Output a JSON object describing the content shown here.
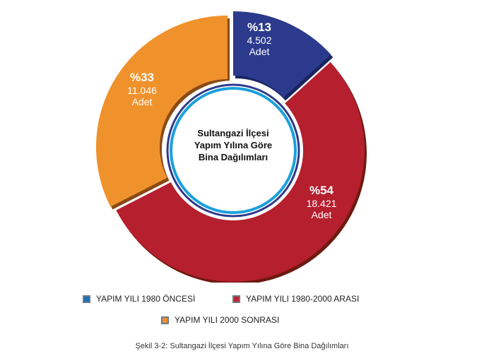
{
  "chart_data": {
    "type": "pie",
    "title": "Sultangazi İlçesi Yapım Yılına Göre Bina Dağılımları",
    "title_lines": [
      "Sultangazi İlçesi",
      "Yapım Yılına Göre",
      "Bina Dağılımları"
    ],
    "caption": "Şekil 3-2: Sultangazi İlçesi Yapım Yılına Göre Bina Dağılımları",
    "unit": "Adet",
    "slices": [
      {
        "name": "YAPIM YILI 1980 ÖNCESİ",
        "percent_label": "%13",
        "value_label": "4.502",
        "unit": "Adet",
        "value": 4502,
        "color": "#2b3a8c",
        "shadow": "#1a2460"
      },
      {
        "name": "YAPIM YILI 1980-2000 ARASI",
        "percent_label": "%54",
        "value_label": "18.421",
        "unit": "Adet",
        "value": 18421,
        "color": "#b51f2e",
        "shadow": "#6e1a10"
      },
      {
        "name": "YAPIM YILI 2000 SONRASI",
        "percent_label": "%33",
        "value_label": "11.046",
        "unit": "Adet",
        "value": 11046,
        "color": "#f0922c",
        "shadow": "#8a4a14"
      }
    ],
    "legend": [
      {
        "label": "YAPIM YILI 1980 ÖNCESİ",
        "color": "#1e6fb5"
      },
      {
        "label": "YAPIM YILI 1980-2000 ARASI",
        "color": "#c0202e"
      },
      {
        "label": "YAPIM YILI 2000 SONRASI",
        "color": "#f0922c"
      }
    ]
  }
}
